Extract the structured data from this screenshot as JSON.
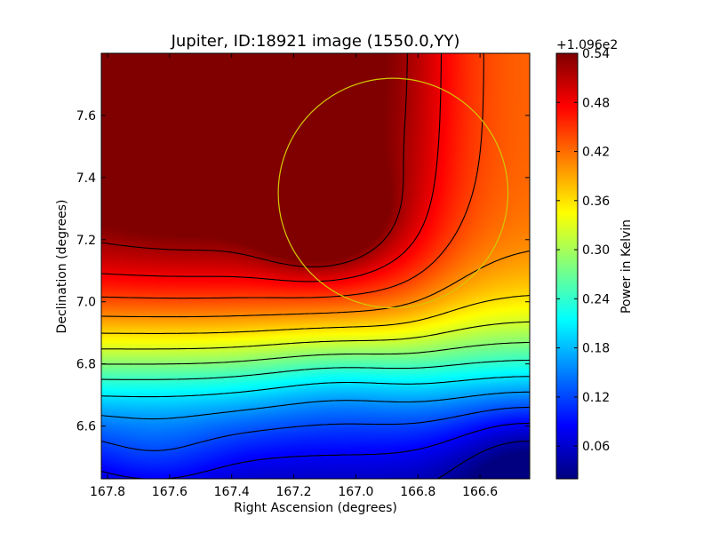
{
  "chart_data": {
    "type": "heatmap",
    "title": "Jupiter, ID:18921 image (1550.0,YY)",
    "xlabel": "Right Ascension (degrees)",
    "ylabel": "Declination (degrees)",
    "xlim": [
      167.82,
      166.44
    ],
    "ylim": [
      6.43,
      7.8
    ],
    "x_ticks": [
      "167.8",
      "167.6",
      "167.4",
      "167.2",
      "167.0",
      "166.8",
      "166.6"
    ],
    "x_tick_values": [
      167.8,
      167.6,
      167.4,
      167.2,
      167.0,
      166.8,
      166.6
    ],
    "y_ticks": [
      "6.6",
      "6.8",
      "7.0",
      "7.2",
      "7.4",
      "7.6"
    ],
    "y_tick_values": [
      6.6,
      6.8,
      7.0,
      7.2,
      7.4,
      7.6
    ],
    "colorbar": {
      "label": "Power in Kelvin",
      "offset_text": "+1.096e2",
      "range": [
        0.02,
        0.54
      ],
      "ticks": [
        "0.06",
        "0.12",
        "0.18",
        "0.24",
        "0.30",
        "0.36",
        "0.42",
        "0.48",
        "0.54"
      ],
      "tick_values": [
        0.06,
        0.12,
        0.18,
        0.24,
        0.3,
        0.36,
        0.42,
        0.48,
        0.54
      ],
      "colormap": "jet"
    },
    "peak": {
      "x": 167.12,
      "y": 7.28,
      "value": 0.54
    },
    "beam_circle": {
      "center_x": 166.88,
      "center_y": 7.35,
      "radius_deg": 0.37,
      "color": "#d4c800"
    },
    "contour_color": "#000000",
    "contour_levels": [
      0.04,
      0.08,
      0.12,
      0.16,
      0.2,
      0.24,
      0.28,
      0.32,
      0.36,
      0.4,
      0.44,
      0.48,
      0.52
    ]
  }
}
